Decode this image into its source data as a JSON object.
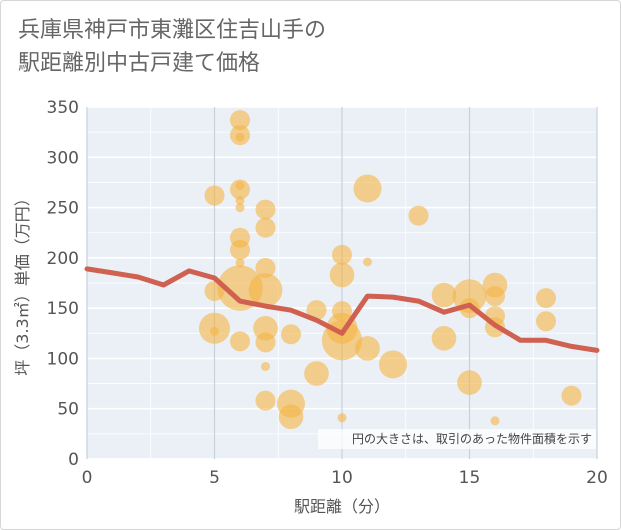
{
  "title_line1": "兵庫県神戸市東灘区住吉山手の",
  "title_line2": "駅距離別中古戸建て価格",
  "chart_data": {
    "type": "scatter",
    "title": "兵庫県神戸市東灘区住吉山手の駅距離別中古戸建て価格",
    "xlabel": "駅距離（分）",
    "ylabel": "坪（3.3㎡）単価（万円）",
    "xlim": [
      0,
      20
    ],
    "ylim": [
      0,
      350
    ],
    "xticks": [
      0,
      5,
      10,
      15,
      20
    ],
    "yticks": [
      0,
      50,
      100,
      150,
      200,
      250,
      300,
      350
    ],
    "grid": true,
    "note": "円の大きさは、取引のあった物件面積を示す",
    "bubble_color": "#f5b443",
    "line_color": "#d06050",
    "points": [
      {
        "x": 5,
        "y": 262,
        "s": 2
      },
      {
        "x": 5,
        "y": 167,
        "s": 2
      },
      {
        "x": 5,
        "y": 130,
        "s": 5
      },
      {
        "x": 5,
        "y": 127,
        "s": 1
      },
      {
        "x": 6,
        "y": 337,
        "s": 2
      },
      {
        "x": 6,
        "y": 322,
        "s": 2
      },
      {
        "x": 6,
        "y": 320,
        "s": 1
      },
      {
        "x": 6,
        "y": 272,
        "s": 1
      },
      {
        "x": 6,
        "y": 268,
        "s": 2
      },
      {
        "x": 6,
        "y": 257,
        "s": 1
      },
      {
        "x": 6,
        "y": 250,
        "s": 1
      },
      {
        "x": 6,
        "y": 220,
        "s": 2
      },
      {
        "x": 6,
        "y": 208,
        "s": 2
      },
      {
        "x": 6,
        "y": 195,
        "s": 1
      },
      {
        "x": 6,
        "y": 170,
        "s": 12
      },
      {
        "x": 6,
        "y": 117,
        "s": 2
      },
      {
        "x": 7,
        "y": 248,
        "s": 2
      },
      {
        "x": 7,
        "y": 230,
        "s": 2
      },
      {
        "x": 7,
        "y": 190,
        "s": 2
      },
      {
        "x": 7,
        "y": 168,
        "s": 6
      },
      {
        "x": 7,
        "y": 130,
        "s": 3
      },
      {
        "x": 7,
        "y": 116,
        "s": 2
      },
      {
        "x": 7,
        "y": 92,
        "s": 1
      },
      {
        "x": 7,
        "y": 58,
        "s": 2
      },
      {
        "x": 8,
        "y": 124,
        "s": 2
      },
      {
        "x": 8,
        "y": 55,
        "s": 4
      },
      {
        "x": 8,
        "y": 42,
        "s": 3
      },
      {
        "x": 9,
        "y": 148,
        "s": 2
      },
      {
        "x": 9,
        "y": 85,
        "s": 3
      },
      {
        "x": 10,
        "y": 203,
        "s": 2
      },
      {
        "x": 10,
        "y": 183,
        "s": 3
      },
      {
        "x": 10,
        "y": 147,
        "s": 2
      },
      {
        "x": 10,
        "y": 130,
        "s": 5
      },
      {
        "x": 10,
        "y": 118,
        "s": 9
      },
      {
        "x": 10,
        "y": 41,
        "s": 1
      },
      {
        "x": 11,
        "y": 269,
        "s": 4
      },
      {
        "x": 11,
        "y": 196,
        "s": 1
      },
      {
        "x": 11,
        "y": 110,
        "s": 3
      },
      {
        "x": 12,
        "y": 94,
        "s": 4
      },
      {
        "x": 13,
        "y": 242,
        "s": 2
      },
      {
        "x": 14,
        "y": 163,
        "s": 3
      },
      {
        "x": 14,
        "y": 120,
        "s": 3
      },
      {
        "x": 15,
        "y": 162,
        "s": 6
      },
      {
        "x": 15,
        "y": 150,
        "s": 2
      },
      {
        "x": 15,
        "y": 76,
        "s": 3
      },
      {
        "x": 16,
        "y": 173,
        "s": 3
      },
      {
        "x": 16,
        "y": 162,
        "s": 2
      },
      {
        "x": 16,
        "y": 142,
        "s": 2
      },
      {
        "x": 16,
        "y": 131,
        "s": 2
      },
      {
        "x": 16,
        "y": 38,
        "s": 1
      },
      {
        "x": 18,
        "y": 160,
        "s": 2
      },
      {
        "x": 18,
        "y": 137,
        "s": 2
      },
      {
        "x": 19,
        "y": 63,
        "s": 2
      }
    ],
    "line": {
      "x": [
        0,
        1,
        2,
        3,
        4,
        5,
        6,
        7,
        8,
        9,
        10,
        11,
        12,
        13,
        14,
        15,
        16,
        17,
        18,
        19,
        20
      ],
      "y": [
        189,
        185,
        181,
        173,
        187,
        180,
        157,
        152,
        148,
        138,
        125,
        162,
        161,
        157,
        146,
        153,
        133,
        118,
        118,
        112,
        108
      ]
    }
  }
}
